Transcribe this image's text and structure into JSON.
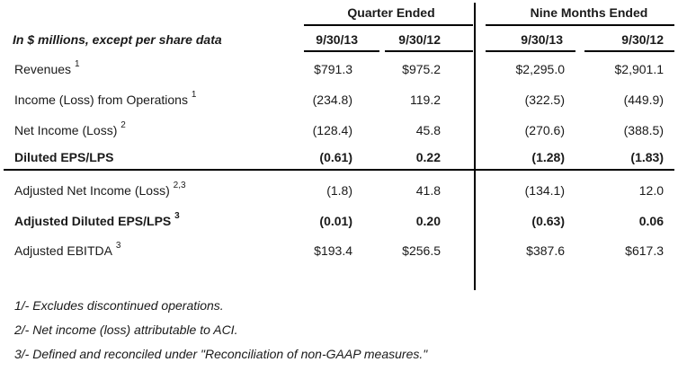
{
  "groups": {
    "quarter": "Quarter Ended",
    "nine_months": "Nine Months Ended"
  },
  "header": {
    "units_label": "In $ millions, except per share data",
    "columns": [
      "9/30/13",
      "9/30/12",
      "9/30/13",
      "9/30/12"
    ]
  },
  "rows": [
    {
      "label": "Revenues",
      "sup": "1",
      "bold": false,
      "values": [
        "$791.3",
        "$975.2",
        "$2,295.0",
        "$2,901.1"
      ]
    },
    {
      "label": "Income (Loss) from Operations",
      "sup": "1",
      "bold": false,
      "values": [
        "(234.8)",
        "119.2",
        "(322.5)",
        "(449.9)"
      ]
    },
    {
      "label": "Net Income (Loss)",
      "sup": "2",
      "bold": false,
      "values": [
        "(128.4)",
        "45.8",
        "(270.6)",
        "(388.5)"
      ]
    },
    {
      "label": "Diluted EPS/LPS",
      "sup": "",
      "bold": true,
      "values": [
        "(0.61)",
        "0.22",
        "(1.28)",
        "(1.83)"
      ]
    },
    {
      "label": "Adjusted Net Income (Loss)",
      "sup": "2,3",
      "bold": false,
      "values": [
        "(1.8)",
        "41.8",
        "(134.1)",
        "12.0"
      ]
    },
    {
      "label": "Adjusted Diluted EPS/LPS",
      "sup": "3",
      "bold": true,
      "values": [
        "(0.01)",
        "0.20",
        "(0.63)",
        "0.06"
      ]
    },
    {
      "label": "Adjusted EBITDA",
      "sup": "3",
      "bold": false,
      "values": [
        "$193.4",
        "$256.5",
        "$387.6",
        "$617.3"
      ]
    }
  ],
  "footnotes": [
    "1/- Excludes discontinued operations.",
    "2/- Net income (loss) attributable to ACI.",
    "3/- Defined and reconciled under \"Reconciliation of non-GAAP measures.\""
  ]
}
